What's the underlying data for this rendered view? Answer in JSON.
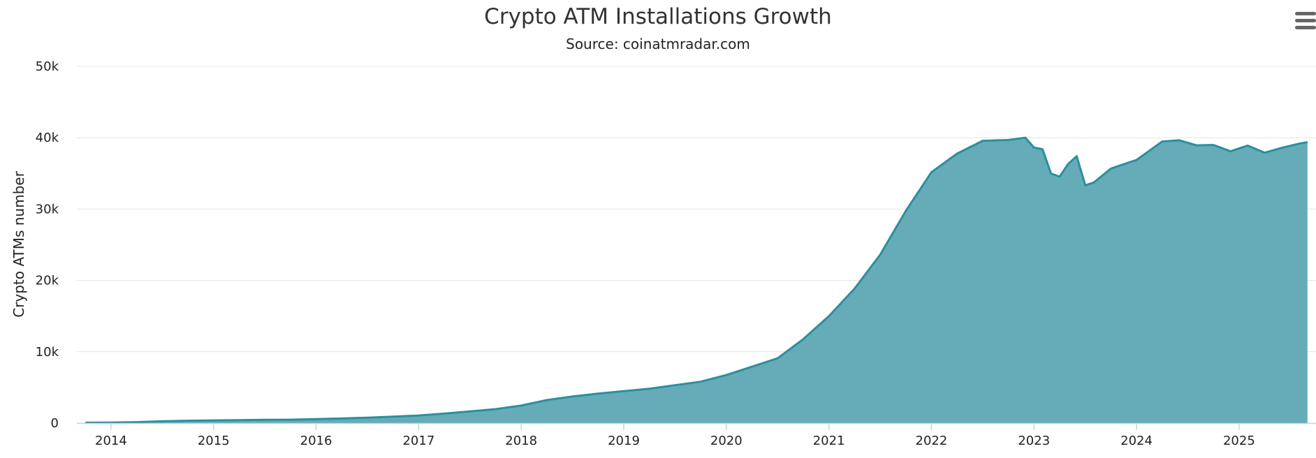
{
  "chart_data": {
    "type": "area",
    "title": "Crypto ATM Installations Growth",
    "subtitle": "Source: coinatmradar.com",
    "ylabel": "Crypto ATMs number",
    "xlabel": "",
    "ylim": [
      0,
      50000
    ],
    "yticks": [
      0,
      10000,
      20000,
      30000,
      40000,
      50000
    ],
    "ytick_labels": [
      "0",
      "10k",
      "20k",
      "30k",
      "40k",
      "50k"
    ],
    "xticks": [
      "2014",
      "2015",
      "2016",
      "2017",
      "2018",
      "2019",
      "2020",
      "2021",
      "2022",
      "2023",
      "2024",
      "2025"
    ],
    "xlim": [
      "2013-09",
      "2025-10"
    ],
    "grid": true,
    "legend": "none",
    "color": "#2b8f9e",
    "fill_color": "#66abb8",
    "series": [
      {
        "x": [
          "2013-10",
          "2014-01",
          "2014-04",
          "2014-07",
          "2014-10",
          "2015-01",
          "2015-04",
          "2015-07",
          "2015-10",
          "2016-01",
          "2016-04",
          "2016-07",
          "2016-10",
          "2017-01",
          "2017-04",
          "2017-07",
          "2017-10",
          "2018-01",
          "2018-04",
          "2018-07",
          "2018-10",
          "2019-01",
          "2019-04",
          "2019-07",
          "2019-10",
          "2020-01",
          "2020-04",
          "2020-07",
          "2020-10",
          "2021-01",
          "2021-04",
          "2021-07",
          "2021-10",
          "2022-01",
          "2022-04",
          "2022-07",
          "2022-10",
          "2022-12",
          "2023-01",
          "2023-02",
          "2023-03",
          "2023-04",
          "2023-05",
          "2023-06",
          "2023-07",
          "2023-08",
          "2023-10",
          "2024-01",
          "2024-04",
          "2024-06",
          "2024-08",
          "2024-10",
          "2024-12",
          "2025-02",
          "2025-04",
          "2025-06",
          "2025-08",
          "2025-09"
        ],
        "values": [
          60,
          80,
          140,
          250,
          330,
          380,
          420,
          460,
          480,
          560,
          650,
          760,
          900,
          1070,
          1330,
          1630,
          1960,
          2460,
          3230,
          3730,
          4130,
          4480,
          4820,
          5310,
          5800,
          6730,
          7910,
          9080,
          11760,
          14980,
          18840,
          23590,
          29730,
          35160,
          37770,
          39570,
          39680,
          40000,
          38610,
          38390,
          34970,
          34540,
          36320,
          37410,
          33330,
          33720,
          35680,
          36880,
          39460,
          39640,
          38930,
          38980,
          38090,
          38890,
          37900,
          38580,
          39160,
          39370
        ]
      }
    ]
  },
  "ui": {
    "menu_icon": "hamburger-menu-icon"
  }
}
